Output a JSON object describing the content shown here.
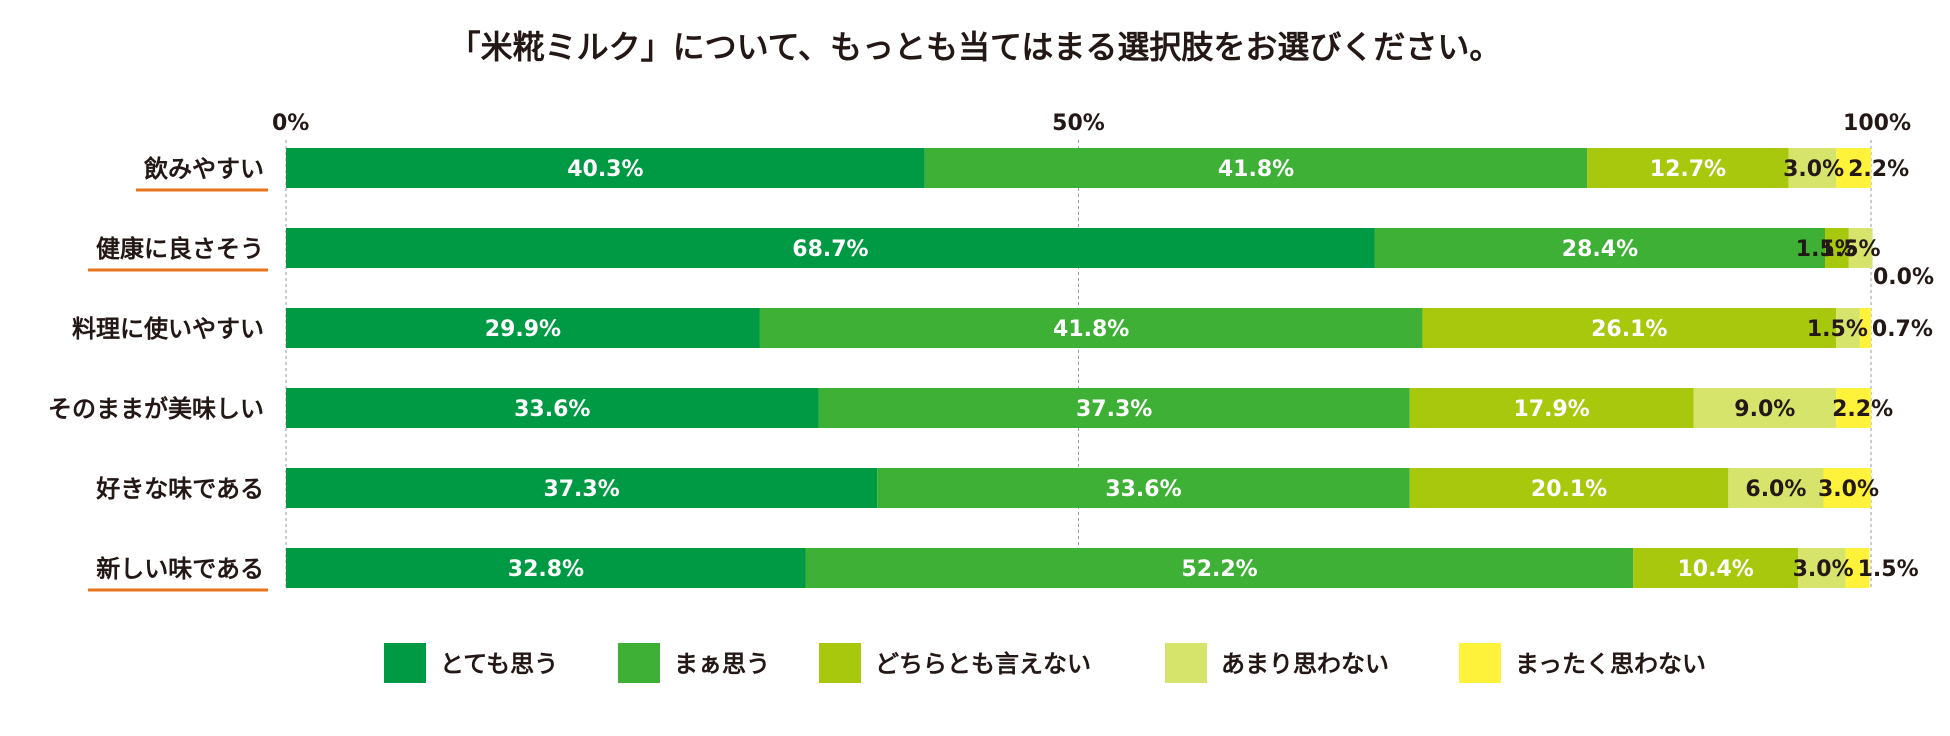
{
  "chart_data": {
    "type": "bar",
    "orientation": "horizontal",
    "stacked": true,
    "title": "「米糀ミルク」について、もっとも当てはまる選択肢をお選びください。",
    "xlim": [
      0,
      100
    ],
    "x_ticks": [
      "0%",
      "50%",
      "100%"
    ],
    "grid": "vertical dashed at 50% and 100%",
    "legend_position": "bottom",
    "categories": [
      "飲みやすい",
      "健康に良さそう",
      "料理に使いやすい",
      "そのままが美味しい",
      "好きな味である",
      "新しい味である"
    ],
    "highlighted_categories": [
      "飲みやすい",
      "健康に良さそう",
      "新しい味である"
    ],
    "highlight_color": "#e8731a",
    "series": [
      {
        "name": "とても思う",
        "color": "#009a44",
        "values": [
          40.3,
          68.7,
          29.9,
          33.6,
          37.3,
          32.8
        ],
        "labels": [
          "40.3%",
          "68.7%",
          "29.9%",
          "33.6%",
          "37.3%",
          "32.8%"
        ]
      },
      {
        "name": "まぁ思う",
        "color": "#3db035",
        "values": [
          41.8,
          28.4,
          41.8,
          37.3,
          33.6,
          52.2
        ],
        "labels": [
          "41.8%",
          "28.4%",
          "41.8%",
          "37.3%",
          "33.6%",
          "52.2%"
        ]
      },
      {
        "name": "どちらとも言えない",
        "color": "#a8c80d",
        "values": [
          12.7,
          1.5,
          26.1,
          17.9,
          20.1,
          10.4
        ],
        "labels": [
          "12.7%",
          "1.5%",
          "26.1%",
          "17.9%",
          "20.1%",
          "10.4%"
        ]
      },
      {
        "name": "あまり思わない",
        "color": "#d6e46c",
        "values": [
          3.0,
          1.5,
          1.5,
          9.0,
          6.0,
          3.0
        ],
        "labels": [
          "3.0%",
          "1.5%",
          "1.5%",
          "9.0%",
          "6.0%",
          "3.0%"
        ]
      },
      {
        "name": "まったく思わない",
        "color": "#fff23a",
        "values": [
          2.2,
          0.0,
          0.7,
          2.2,
          3.0,
          1.5
        ],
        "labels": [
          "2.2%",
          "0.0%",
          "0.7%",
          "2.2%",
          "3.0%",
          "1.5%"
        ]
      }
    ]
  }
}
